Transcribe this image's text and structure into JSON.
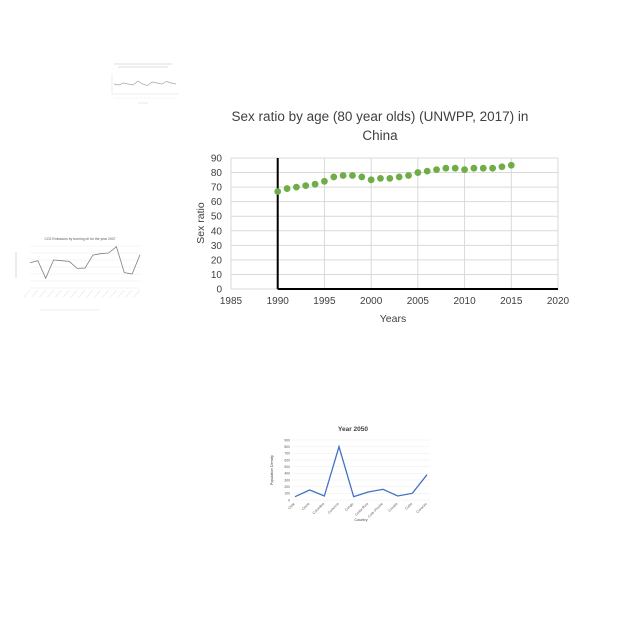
{
  "chart_data": [
    {
      "type": "scatter",
      "title": "Sex ratio by age (80 year olds) (UNWPP, 2017) in China",
      "title_lines": [
        "Sex ratio by age (80 year olds) (UNWPP, 2017) in",
        "China"
      ],
      "xlabel": "Years",
      "ylabel": "Sex ratio",
      "xlim": [
        1985,
        2020
      ],
      "ylim": [
        0,
        90
      ],
      "xticks": [
        1985,
        1990,
        1995,
        2000,
        2005,
        2010,
        2015,
        2020
      ],
      "yticks": [
        0,
        10,
        20,
        30,
        40,
        50,
        60,
        70,
        80,
        90
      ],
      "grid": true,
      "marker_color": "#70ad47",
      "x": [
        1990,
        1991,
        1992,
        1993,
        1994,
        1995,
        1996,
        1997,
        1998,
        1999,
        2000,
        2001,
        2002,
        2003,
        2004,
        2005,
        2006,
        2007,
        2008,
        2009,
        2010,
        2011,
        2012,
        2013,
        2014,
        2015
      ],
      "y": [
        67,
        69,
        70,
        71,
        72,
        74,
        77,
        78,
        78,
        77,
        75,
        76,
        76,
        77,
        78,
        80,
        81,
        82,
        83,
        83,
        82,
        83,
        83,
        83,
        84,
        85
      ]
    },
    {
      "type": "line",
      "title": "Year 2050",
      "xlabel": "Country",
      "ylabel": "Population Density",
      "ylim": [
        0,
        900
      ],
      "yticks": [
        0,
        100,
        200,
        300,
        400,
        500,
        600,
        700,
        800,
        900
      ],
      "line_color": "#4472c4",
      "categories": [
        "Chile",
        "China",
        "Colombia",
        "Comoros",
        "Congo",
        "Costa Rica",
        "Cote d'Ivoire",
        "Croatia",
        "Cuba",
        "Curacao"
      ],
      "values": [
        50,
        150,
        60,
        800,
        50,
        120,
        160,
        60,
        100,
        380
      ]
    },
    {
      "type": "line",
      "title": "CO2 Emissions by burning oil for the year 2007",
      "ylim": [
        0,
        1200000
      ],
      "line_color": "#808080",
      "values": [
        720000,
        780000,
        280000,
        800000,
        780000,
        760000,
        560000,
        570000,
        940000,
        980000,
        1000000,
        1180000,
        440000,
        400000,
        950000
      ]
    },
    {
      "type": "line",
      "line_color": "#a6a6a6",
      "values": [
        60,
        58,
        62,
        60,
        58,
        66,
        60,
        57,
        64,
        62,
        60,
        65,
        62,
        60
      ]
    }
  ]
}
